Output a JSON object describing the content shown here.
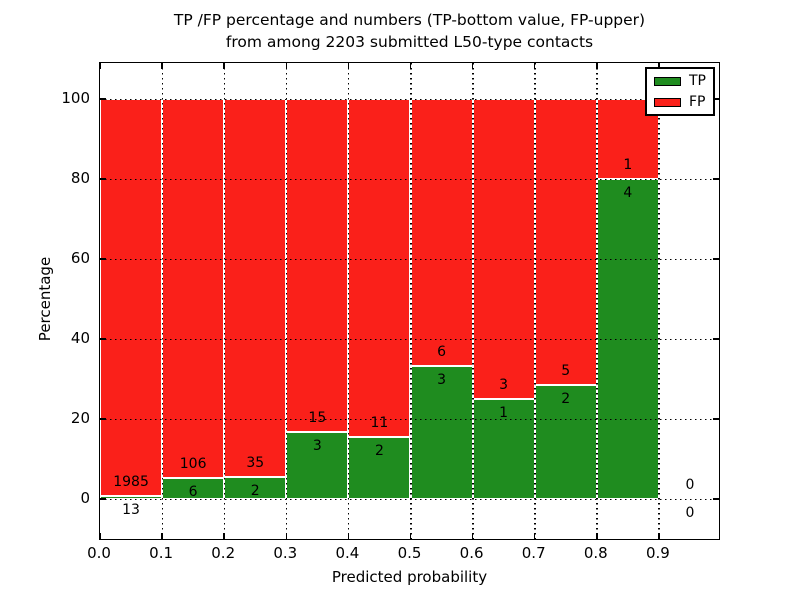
{
  "figure": {
    "title_line1": "TP /FP percentage and numbers (TP-bottom value, FP-upper)",
    "title_line2": "from among 2203 submitted L50-type contacts",
    "xlabel": "Predicted probability",
    "ylabel": "Percentage"
  },
  "colors": {
    "tp": "#1f8c1f",
    "fp": "#fa201a"
  },
  "legend": {
    "position": "upper right",
    "items": [
      {
        "label": "TP",
        "color": "#1f8c1f"
      },
      {
        "label": "FP",
        "color": "#fa201a"
      }
    ]
  },
  "chart_data": {
    "type": "bar",
    "stacked": true,
    "normalized_to_percent": true,
    "bin_width": 0.1,
    "bin_starts": [
      0.0,
      0.1,
      0.2,
      0.3,
      0.4,
      0.5,
      0.6,
      0.7,
      0.8,
      0.9
    ],
    "categories": [
      "0.0-0.1",
      "0.1-0.2",
      "0.2-0.3",
      "0.3-0.4",
      "0.4-0.5",
      "0.5-0.6",
      "0.6-0.7",
      "0.7-0.8",
      "0.8-0.9",
      "0.9-1.0"
    ],
    "series": [
      {
        "name": "TP",
        "counts": [
          13,
          6,
          2,
          3,
          2,
          3,
          1,
          2,
          4,
          0
        ]
      },
      {
        "name": "FP",
        "counts": [
          1985,
          106,
          35,
          15,
          11,
          6,
          3,
          5,
          1,
          0
        ]
      }
    ],
    "tp_percent": [
      0.65,
      5.36,
      5.41,
      16.67,
      15.38,
      33.33,
      25.0,
      28.57,
      80.0,
      0.0
    ],
    "total_contacts": 2203,
    "title": "TP /FP percentage and numbers (TP-bottom value, FP-upper) from among 2203 submitted L50-type contacts",
    "xlabel": "Predicted probability",
    "ylabel": "Percentage",
    "x_ticks": [
      "0.0",
      "0.1",
      "0.2",
      "0.3",
      "0.4",
      "0.5",
      "0.6",
      "0.7",
      "0.8",
      "0.9"
    ],
    "y_ticks": [
      0,
      20,
      40,
      60,
      80,
      100
    ],
    "xlim": [
      0.0,
      1.0
    ],
    "ylim": [
      -10.5,
      109
    ],
    "grid": "dotted, drawn above bars",
    "bar_edge_color": "#ffffff"
  }
}
